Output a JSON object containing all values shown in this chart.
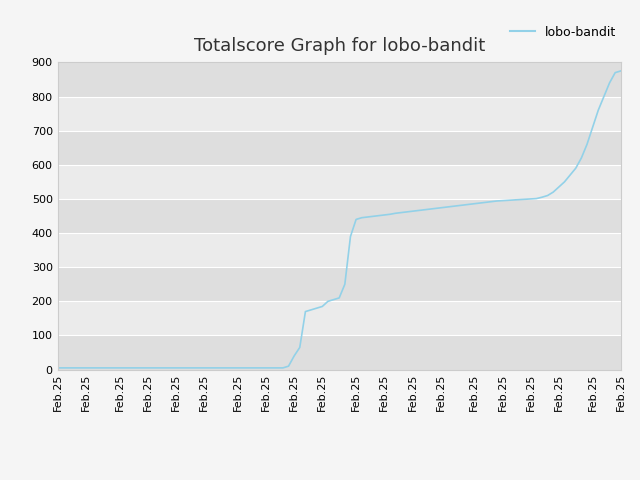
{
  "title": "Totalscore Graph for lobo-bandit",
  "legend_label": "lobo-bandit",
  "line_color": "#92d1e8",
  "plot_bg_color": "#e8e8e8",
  "fig_bg_color": "#f5f5f5",
  "grid_color": "#ffffff",
  "band_color_dark": "#dedede",
  "band_color_light": "#ebebeb",
  "ylim": [
    0,
    900
  ],
  "yticks": [
    0,
    100,
    200,
    300,
    400,
    500,
    600,
    700,
    800,
    900
  ],
  "num_xticks": 20,
  "y_values": [
    5,
    5,
    5,
    5,
    5,
    5,
    5,
    5,
    5,
    5,
    5,
    5,
    5,
    5,
    5,
    5,
    5,
    5,
    5,
    5,
    5,
    5,
    5,
    5,
    5,
    5,
    5,
    5,
    5,
    5,
    5,
    5,
    5,
    5,
    5,
    5,
    5,
    5,
    5,
    5,
    5,
    10,
    40,
    65,
    170,
    175,
    180,
    185,
    200,
    205,
    210,
    250,
    390,
    440,
    445,
    447,
    449,
    451,
    453,
    455,
    458,
    460,
    462,
    464,
    466,
    468,
    470,
    472,
    474,
    476,
    478,
    480,
    482,
    484,
    486,
    488,
    490,
    492,
    494,
    495,
    496,
    497,
    498,
    499,
    500,
    501,
    505,
    510,
    520,
    535,
    550,
    570,
    590,
    620,
    660,
    710,
    760,
    800,
    840,
    870,
    875
  ],
  "xtick_label": "Feb.25",
  "title_fontsize": 13,
  "tick_fontsize": 8,
  "legend_fontsize": 9,
  "line_width": 1.2
}
